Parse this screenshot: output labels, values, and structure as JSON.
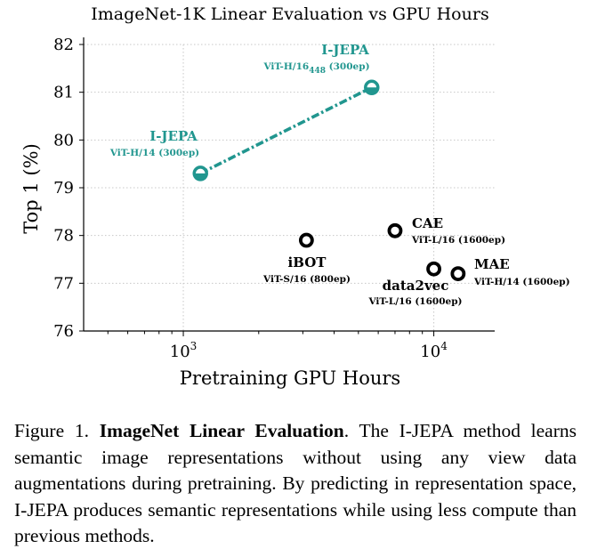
{
  "chart_data": {
    "type": "scatter",
    "title": "ImageNet-1K Linear Evaluation vs GPU Hours",
    "xlabel": "Pretraining GPU Hours",
    "ylabel": "Top 1 (%)",
    "xscale": "log",
    "xlim": [
      400,
      17500
    ],
    "ylim": [
      76,
      82
    ],
    "yticks": [
      76,
      77,
      78,
      79,
      80,
      81,
      82
    ],
    "xticks": [
      {
        "value": 1000,
        "base": "10",
        "exp": "3"
      },
      {
        "value": 10000,
        "base": "10",
        "exp": "4"
      }
    ],
    "grid": true,
    "accent_color": "#21968f",
    "points": [
      {
        "method": "I-JEPA",
        "arch": "ViT-H/14 (300ep)",
        "x": 1170,
        "y": 79.3,
        "highlight": true
      },
      {
        "method": "I-JEPA",
        "arch_main": "ViT-H/16",
        "arch_sub": "448",
        "arch_rest": "(300ep)",
        "x": 5650,
        "y": 81.1,
        "highlight": true
      },
      {
        "method": "iBOT",
        "arch": "ViT-S/16 (800ep)",
        "x": 3100,
        "y": 77.9,
        "highlight": false
      },
      {
        "method": "CAE",
        "arch": "ViT-L/16 (1600ep)",
        "x": 7000,
        "y": 78.1,
        "highlight": false
      },
      {
        "method": "data2vec",
        "arch": "ViT-L/16 (1600ep)",
        "x": 10000,
        "y": 77.3,
        "highlight": false
      },
      {
        "method": "MAE",
        "arch": "ViT-H/14 (1600ep)",
        "x": 12500,
        "y": 77.2,
        "highlight": false
      }
    ]
  },
  "caption": {
    "prefix": "Figure 1.",
    "bold": "ImageNet Linear Evaluation",
    "text": ". The I-JEPA method learns semantic image representations without using any view data augmentations during pretraining. By predicting in representation space, I-JEPA produces semantic representations while using less compute than previous methods."
  }
}
